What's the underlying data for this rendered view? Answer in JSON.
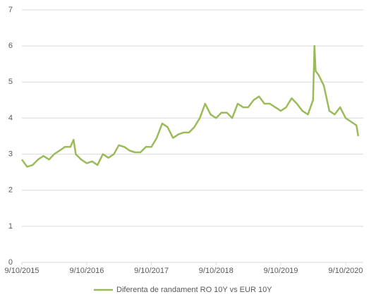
{
  "chart_data": {
    "type": "line",
    "x": [
      "9/10/2015",
      "10/10/2015",
      "11/10/2015",
      "12/10/2015",
      "1/10/2016",
      "2/10/2016",
      "3/10/2016",
      "4/10/2016",
      "5/10/2016",
      "6/10/2016",
      "6/28/2016",
      "7/10/2016",
      "8/10/2016",
      "9/10/2016",
      "10/10/2016",
      "11/10/2016",
      "12/10/2016",
      "1/10/2017",
      "2/10/2017",
      "3/10/2017",
      "4/10/2017",
      "5/10/2017",
      "6/10/2017",
      "7/10/2017",
      "8/10/2017",
      "9/10/2017",
      "10/10/2017",
      "11/10/2017",
      "12/10/2017",
      "1/10/2018",
      "2/10/2018",
      "3/10/2018",
      "4/10/2018",
      "5/10/2018",
      "6/10/2018",
      "7/10/2018",
      "8/10/2018",
      "9/10/2018",
      "10/10/2018",
      "11/10/2018",
      "12/10/2018",
      "1/10/2019",
      "2/10/2019",
      "3/10/2019",
      "4/10/2019",
      "5/10/2019",
      "6/10/2019",
      "7/10/2019",
      "8/10/2019",
      "9/10/2019",
      "10/10/2019",
      "11/10/2019",
      "12/10/2019",
      "1/10/2020",
      "2/10/2020",
      "3/10/2020",
      "3/18/2020",
      "3/25/2020",
      "4/10/2020",
      "5/10/2020",
      "6/10/2020",
      "7/10/2020",
      "8/10/2020",
      "9/10/2020",
      "10/10/2020",
      "11/10/2020",
      "11/20/2020"
    ],
    "series": [
      {
        "name": "Diferenta de randament RO 10Y vs EUR 10Y",
        "color": "#9bbb59",
        "values": [
          2.85,
          2.65,
          2.7,
          2.85,
          2.95,
          2.85,
          3.0,
          3.1,
          3.2,
          3.2,
          3.4,
          3.0,
          2.85,
          2.75,
          2.8,
          2.7,
          3.0,
          2.9,
          3.0,
          3.25,
          3.2,
          3.1,
          3.05,
          3.05,
          3.2,
          3.2,
          3.45,
          3.85,
          3.75,
          3.45,
          3.55,
          3.6,
          3.6,
          3.75,
          4.0,
          4.4,
          4.1,
          4.0,
          4.15,
          4.15,
          4.0,
          4.4,
          4.3,
          4.3,
          4.5,
          4.6,
          4.4,
          4.4,
          4.3,
          4.2,
          4.3,
          4.55,
          4.4,
          4.2,
          4.1,
          4.5,
          6.0,
          5.3,
          5.2,
          4.9,
          4.2,
          4.1,
          4.3,
          4.0,
          3.9,
          3.8,
          3.5
        ]
      }
    ],
    "xlim": [
      "9/10/2015",
      "12/19/2020"
    ],
    "xticks": [
      "9/10/2015",
      "9/10/2016",
      "9/10/2017",
      "9/10/2018",
      "9/10/2019",
      "9/10/2020"
    ],
    "ylim": [
      0,
      7
    ],
    "yticks": [
      0,
      1,
      2,
      3,
      4,
      5,
      6,
      7
    ],
    "grid": true,
    "legend": "bottom"
  }
}
